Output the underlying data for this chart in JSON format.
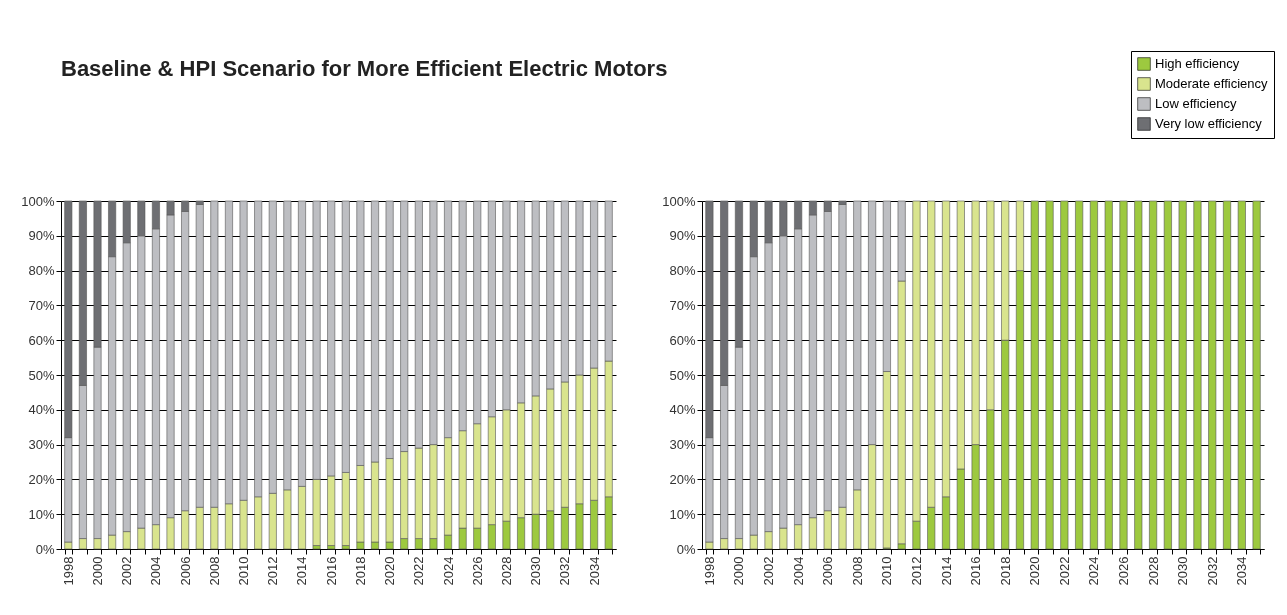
{
  "chart_data": [
    {
      "type": "bar",
      "title": "Baseline & HPI Scenario for More Efficient Electric Motors",
      "stacked": true,
      "grid": "y",
      "categories": [
        "1998",
        null,
        "2000",
        null,
        "2002",
        null,
        "2004",
        null,
        "2006",
        null,
        "2008",
        null,
        "2010",
        null,
        "2012",
        null,
        "2014",
        null,
        "2016",
        null,
        "2018",
        null,
        "2020",
        null,
        "2022",
        null,
        "2024",
        null,
        "2026",
        null,
        "2028",
        null,
        "2030",
        null,
        "2032",
        null,
        "2034",
        null
      ],
      "ylim": [
        0,
        100
      ],
      "yticks": [
        {
          "value": 0,
          "label": "0%"
        },
        {
          "value": 10,
          "label": "10%"
        },
        {
          "value": 20,
          "label": "20%"
        },
        {
          "value": 30,
          "label": "30%"
        },
        {
          "value": 40,
          "label": "40%"
        },
        {
          "value": 50,
          "label": "50%"
        },
        {
          "value": 60,
          "label": "60%"
        },
        {
          "value": 70,
          "label": "70%"
        },
        {
          "value": 80,
          "label": "80%"
        },
        {
          "value": 90,
          "label": "90%"
        },
        {
          "value": 100,
          "label": "100%"
        }
      ],
      "series": [
        {
          "color": "#9dc93f",
          "values": [
            0,
            0,
            0,
            0,
            0,
            0,
            0,
            0,
            0,
            0,
            0,
            0,
            0,
            0,
            0,
            0,
            0,
            1,
            1,
            1,
            2,
            2,
            2,
            3,
            3,
            3,
            4,
            6,
            6,
            7,
            8,
            9,
            10,
            11,
            12,
            13,
            14,
            15
          ]
        },
        {
          "color": "#d9e48e",
          "values": [
            2,
            3,
            3,
            4,
            5,
            6,
            7,
            9,
            11,
            12,
            12,
            13,
            14,
            15,
            16,
            17,
            18,
            19,
            20,
            21,
            22,
            23,
            24,
            25,
            26,
            27,
            28,
            28,
            30,
            31,
            32,
            33,
            34,
            35,
            36,
            37,
            38,
            39
          ]
        },
        {
          "color": "#bdbec2",
          "values": [
            30,
            44,
            55,
            80,
            83,
            84,
            85,
            87,
            86,
            87,
            88,
            87,
            86,
            85,
            84,
            83,
            82,
            80,
            79,
            78,
            76,
            75,
            74,
            72,
            71,
            70,
            68,
            66,
            64,
            62,
            60,
            58,
            56,
            54,
            52,
            50,
            48,
            46
          ]
        },
        {
          "color": "#6e6f73",
          "values": [
            68,
            53,
            42,
            16,
            12,
            10,
            8,
            4,
            3,
            1,
            0,
            0,
            0,
            0,
            0,
            0,
            0,
            0,
            0,
            0,
            0,
            0,
            0,
            0,
            0,
            0,
            0,
            0,
            0,
            0,
            0,
            0,
            0,
            0,
            0,
            0,
            0,
            0
          ]
        }
      ]
    },
    {
      "type": "bar",
      "stacked": true,
      "grid": "y",
      "legend": "top right",
      "categories": [
        "1998",
        null,
        "2000",
        null,
        "2002",
        null,
        "2004",
        null,
        "2006",
        null,
        "2008",
        null,
        "2010",
        null,
        "2012",
        null,
        "2014",
        null,
        "2016",
        null,
        "2018",
        null,
        "2020",
        null,
        "2022",
        null,
        "2024",
        null,
        "2026",
        null,
        "2028",
        null,
        "2030",
        null,
        "2032",
        null,
        "2034",
        null
      ],
      "ylim": [
        0,
        100
      ],
      "yticks": [
        {
          "value": 0,
          "label": "0%"
        },
        {
          "value": 10,
          "label": "10%"
        },
        {
          "value": 20,
          "label": "20%"
        },
        {
          "value": 30,
          "label": "30%"
        },
        {
          "value": 40,
          "label": "40%"
        },
        {
          "value": 50,
          "label": "50%"
        },
        {
          "value": 60,
          "label": "60%"
        },
        {
          "value": 70,
          "label": "70%"
        },
        {
          "value": 80,
          "label": "80%"
        },
        {
          "value": 90,
          "label": "90%"
        },
        {
          "value": 100,
          "label": "100%"
        }
      ],
      "series": [
        {
          "name": "High efficiency",
          "color": "#9dc93f",
          "values": [
            0,
            0,
            0,
            0,
            0,
            0,
            0,
            0,
            0,
            0,
            0,
            0,
            0.3,
            1.5,
            8,
            12,
            15,
            23,
            30,
            40,
            60,
            80,
            100,
            100,
            100,
            100,
            100,
            100,
            100,
            100,
            100,
            100,
            100,
            100,
            100,
            100,
            100,
            100
          ]
        },
        {
          "name": "Moderate efficiency",
          "color": "#d9e48e",
          "values": [
            2,
            3,
            3,
            4,
            5,
            6,
            7,
            9,
            11,
            12,
            17,
            30,
            50.7,
            75.5,
            92,
            88,
            85,
            77,
            70,
            60,
            40,
            20,
            0,
            0,
            0,
            0,
            0,
            0,
            0,
            0,
            0,
            0,
            0,
            0,
            0,
            0,
            0,
            0
          ]
        },
        {
          "name": "Low efficiency",
          "color": "#bdbec2",
          "values": [
            30,
            44,
            55,
            80,
            83,
            84,
            85,
            87,
            86,
            87,
            83,
            70,
            49,
            23,
            0,
            0,
            0,
            0,
            0,
            0,
            0,
            0,
            0,
            0,
            0,
            0,
            0,
            0,
            0,
            0,
            0,
            0,
            0,
            0,
            0,
            0,
            0,
            0
          ]
        },
        {
          "name": "Very low efficiency",
          "color": "#6e6f73",
          "values": [
            68,
            53,
            42,
            16,
            12,
            10,
            8,
            4,
            3,
            1,
            0,
            0,
            0,
            0,
            0,
            0,
            0,
            0,
            0,
            0,
            0,
            0,
            0,
            0,
            0,
            0,
            0,
            0,
            0,
            0,
            0,
            0,
            0,
            0,
            0,
            0,
            0,
            0
          ]
        }
      ]
    }
  ]
}
